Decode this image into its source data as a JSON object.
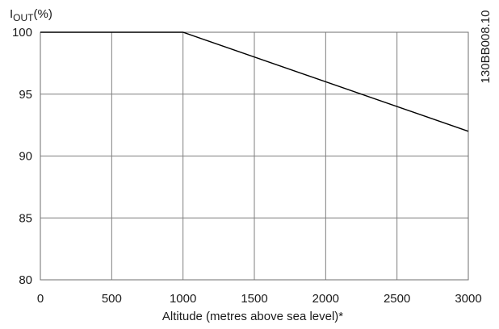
{
  "chart_data": {
    "type": "line",
    "ylabel": {
      "main": "I",
      "sub": "OUT",
      "suffix": "(%)"
    },
    "xlabel": "Altitude (metres above sea level)*",
    "code": "130BB008.10",
    "x": [
      0,
      1000,
      3000
    ],
    "series": [
      {
        "values": [
          100,
          100,
          92
        ]
      }
    ],
    "xlim": [
      0,
      3000
    ],
    "ylim": [
      80,
      100
    ],
    "xticks": [
      "0",
      "500",
      "1000",
      "1500",
      "2000",
      "2500",
      "3000"
    ],
    "yticks": [
      "80",
      "85",
      "90",
      "95",
      "100"
    ],
    "grid": true,
    "line_color": "#000000",
    "grid_color": "#7f7f7f"
  }
}
